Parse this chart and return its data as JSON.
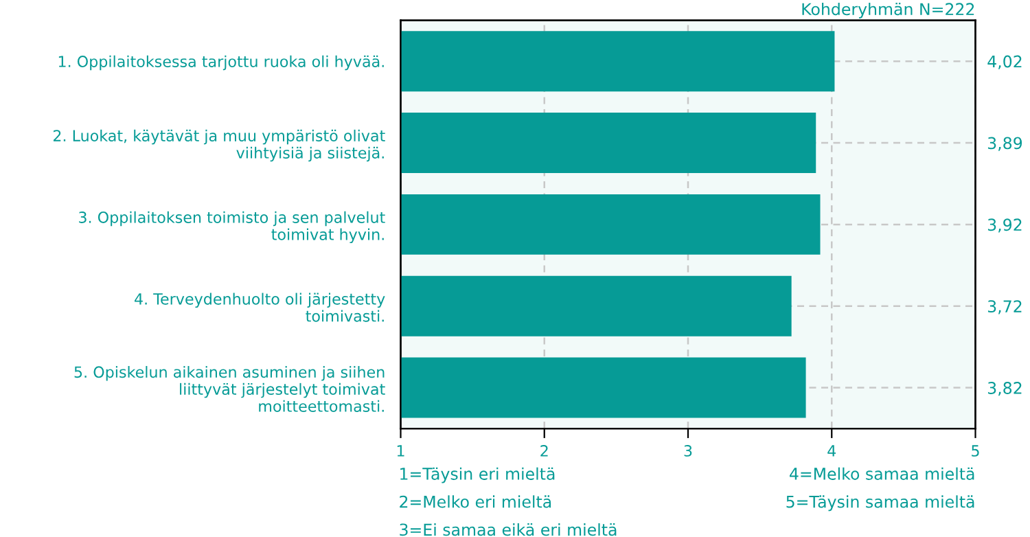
{
  "chart_data": {
    "type": "bar",
    "orientation": "horizontal",
    "subtitle": "Kohderyhmän N=222",
    "categories": [
      "1. Oppilaitoksessa tarjottu ruoka oli hyvää.",
      "2. Luokat, käytävät ja muu ympäristö olivat\nviihtyisiä ja siistejä.",
      "3. Oppilaitoksen toimisto ja sen palvelut\ntoimivat hyvin.",
      "4. Terveydenhuolto oli järjestetty\ntoimivasti.",
      "5. Opiskelun aikainen asuminen ja siihen\nliittyvät järjestelyt toimivat\nmoitteettomasti."
    ],
    "values": [
      4.02,
      3.89,
      3.92,
      3.72,
      3.82
    ],
    "value_labels": [
      "4,02",
      "3,89",
      "3,92",
      "3,72",
      "3,82"
    ],
    "color": "#069b96",
    "xlim": [
      1,
      5
    ],
    "xticks": [
      1,
      2,
      3,
      4,
      5
    ],
    "grid": true,
    "annotations": [
      "1=Täysin eri mieltä",
      "2=Melko eri mieltä",
      "3=Ei samaa eikä eri mieltä",
      "4=Melko samaa mieltä",
      "5=Täysin samaa mieltä"
    ]
  }
}
